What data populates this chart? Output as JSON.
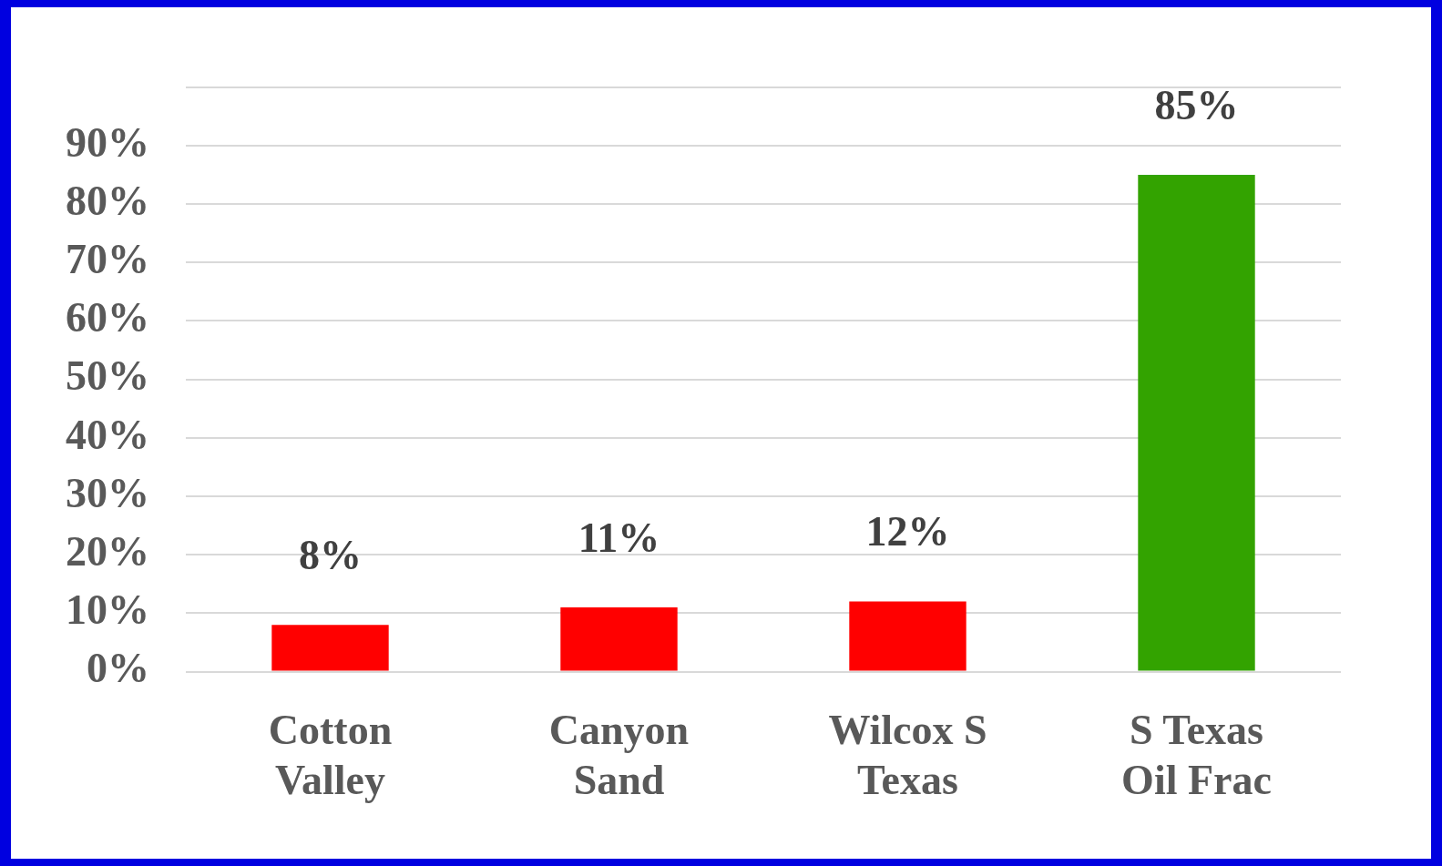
{
  "chart_data": {
    "type": "bar",
    "categories": [
      "Cotton Valley",
      "Canyon Sand",
      "Wilcox S Texas",
      "S Texas Oil Frac"
    ],
    "values": [
      8,
      11,
      12,
      85
    ],
    "colors": [
      "#ff0000",
      "#ff0000",
      "#ff0000",
      "#33a300"
    ],
    "value_labels": [
      "8%",
      "11%",
      "12%",
      "85%"
    ],
    "ylim": [
      0,
      100
    ],
    "yticks": [
      {
        "value": 0,
        "label": "0%"
      },
      {
        "value": 10,
        "label": "10%"
      },
      {
        "value": 20,
        "label": "20%"
      },
      {
        "value": 30,
        "label": "30%"
      },
      {
        "value": 40,
        "label": "40%"
      },
      {
        "value": 50,
        "label": "50%"
      },
      {
        "value": 60,
        "label": "60%"
      },
      {
        "value": 70,
        "label": "70%"
      },
      {
        "value": 80,
        "label": "80%"
      },
      {
        "value": 90,
        "label": "90%"
      },
      {
        "value": 100,
        "label": null
      }
    ],
    "grid": "y"
  }
}
